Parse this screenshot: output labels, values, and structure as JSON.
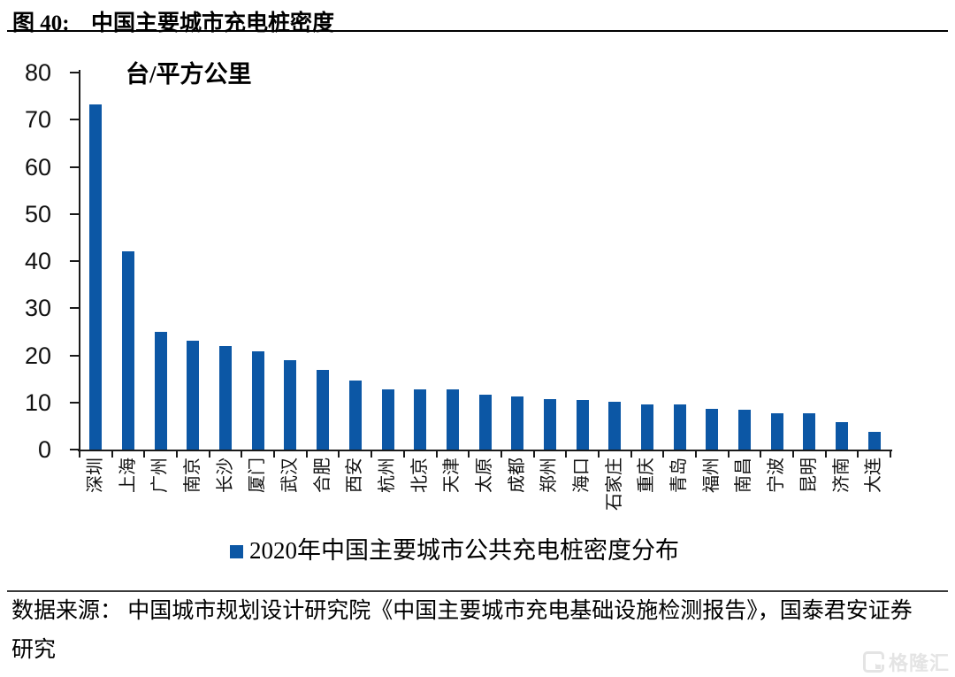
{
  "figure": {
    "label": "图 40:",
    "title": "中国主要城市充电桩密度"
  },
  "chart_data": {
    "type": "bar",
    "title": "中国主要城市充电桩密度",
    "unit_label": "台/平方公里",
    "categories": [
      "深圳",
      "上海",
      "广州",
      "南京",
      "长沙",
      "厦门",
      "武汉",
      "合肥",
      "西安",
      "杭州",
      "北京",
      "天津",
      "太原",
      "成都",
      "郑州",
      "海口",
      "石家庄",
      "重庆",
      "青岛",
      "福州",
      "南昌",
      "宁波",
      "昆明",
      "济南",
      "大连"
    ],
    "values": [
      73.3,
      42,
      25,
      23.2,
      21.9,
      20.9,
      18.9,
      16.9,
      14.7,
      12.8,
      12.8,
      12.7,
      11.7,
      11.2,
      10.7,
      10.6,
      10.1,
      9.6,
      9.5,
      8.7,
      8.5,
      7.7,
      7.7,
      5.8,
      3.8
    ],
    "ylim": [
      0,
      80
    ],
    "yticks": [
      0,
      10,
      20,
      30,
      40,
      50,
      60,
      70,
      80
    ],
    "grid": false,
    "bar_color": "#0C57A5",
    "axis_color": "#1a1a1a",
    "legend": [
      "2020年中国主要城市公共充电桩密度分布"
    ],
    "legend_position": "bottom"
  },
  "footer": {
    "source_line1": "数据来源： 中国城市规划设计研究院《中国主要城市充电基础设施检测报告》，国泰君安证券",
    "source_line2": "研究",
    "watermark": "格隆汇"
  }
}
